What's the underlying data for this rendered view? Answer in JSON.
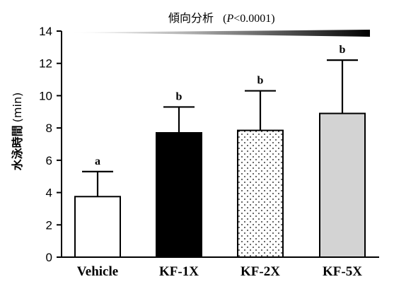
{
  "chart_data": {
    "type": "bar",
    "categories": [
      "Vehicle",
      "KF-1X",
      "KF-2X",
      "KF-5X"
    ],
    "values": [
      3.75,
      7.7,
      7.85,
      8.9
    ],
    "error_upper": [
      5.3,
      9.3,
      10.3,
      12.2
    ],
    "significance": [
      "a",
      "b",
      "b",
      "b"
    ],
    "fills": [
      "white",
      "black",
      "dots",
      "lightgray"
    ],
    "colors": {
      "black": "#000000",
      "lightgray": "#d3d3d3",
      "white": "#ffffff"
    },
    "ylabel_cjk": "水泳時間",
    "ylabel_unit": "(min)",
    "ylim": [
      0,
      14
    ],
    "yticks": [
      "0",
      "2",
      "4",
      "6",
      "8",
      "10",
      "12",
      "14"
    ],
    "trend": {
      "label_cjk": "傾向分析",
      "p_symbol": "P",
      "p_rest": "<0.0001)",
      "open_paren": "("
    },
    "grid": false
  }
}
